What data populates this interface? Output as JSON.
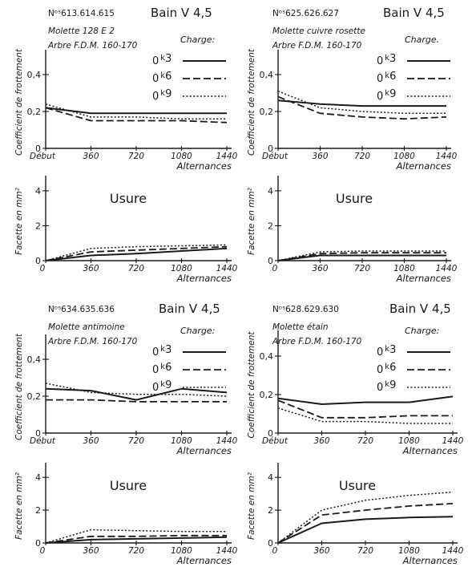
{
  "ink": "#1a1a1a",
  "paper": "#ffffff",
  "legend_header": "Charge:",
  "legend_header_dot": "Charge.",
  "panels": [
    {
      "id": "613",
      "header": {
        "number": "Nᵒˢ613.614.615",
        "bain": "Bain V 4,5",
        "line1": "Molette  128  E 2",
        "line2": "Arbre  F.D.M. 160-170"
      },
      "friction": {
        "ylabel": "Coefficient de frottement",
        "xlabel": "Alternances",
        "x_ticks": [
          "Début",
          "360",
          "720",
          "1080",
          "1440"
        ],
        "y_ticks": [
          "0",
          "0,2",
          "0,4"
        ],
        "ylim": [
          0,
          0.5
        ],
        "x": [
          0,
          360,
          720,
          1080,
          1440
        ],
        "series": [
          {
            "name": "0k3",
            "style": "solid",
            "values": [
              0.22,
              0.19,
              0.19,
              0.19,
              0.19
            ]
          },
          {
            "name": "0k6",
            "style": "dashed",
            "values": [
              0.22,
              0.15,
              0.15,
              0.15,
              0.14
            ]
          },
          {
            "name": "0k9",
            "style": "dotted",
            "values": [
              0.24,
              0.17,
              0.17,
              0.16,
              0.16
            ]
          }
        ]
      },
      "wear": {
        "title": "Usure",
        "ylabel": "Facette en mm²",
        "xlabel": "Alternances",
        "x_ticks": [
          "0",
          "360",
          "720",
          "1080",
          "1440"
        ],
        "y_ticks": [
          "0",
          "2",
          "4"
        ],
        "ylim": [
          0,
          4.5
        ],
        "x": [
          0,
          360,
          720,
          1080,
          1440
        ],
        "series": [
          {
            "name": "0k3",
            "style": "solid",
            "values": [
              0,
              0.3,
              0.4,
              0.55,
              0.7
            ]
          },
          {
            "name": "0k6",
            "style": "dashed",
            "values": [
              0,
              0.5,
              0.6,
              0.7,
              0.8
            ]
          },
          {
            "name": "0k9",
            "style": "dotted",
            "values": [
              0,
              0.7,
              0.8,
              0.85,
              0.9
            ]
          }
        ]
      }
    },
    {
      "id": "625",
      "header": {
        "number": "Nᵒˢ625.626.627",
        "bain": "Bain V 4,5",
        "line1": "Molette cuivre rosette",
        "line2": "Arbre  F.D.M. 160-170"
      },
      "friction": {
        "ylabel": "Coefficient de frottement",
        "xlabel": "Alternances",
        "x_ticks": [
          "Début",
          "360",
          "720",
          "1080",
          "1440"
        ],
        "y_ticks": [
          "0",
          "0,2",
          "0,4"
        ],
        "ylim": [
          0,
          0.5
        ],
        "x": [
          0,
          360,
          720,
          1080,
          1440
        ],
        "series": [
          {
            "name": "0k3",
            "style": "solid",
            "values": [
              0.26,
              0.24,
              0.23,
              0.23,
              0.23
            ]
          },
          {
            "name": "0k6",
            "style": "dashed",
            "values": [
              0.28,
              0.19,
              0.17,
              0.16,
              0.17
            ]
          },
          {
            "name": "0k9",
            "style": "dotted",
            "values": [
              0.31,
              0.22,
              0.2,
              0.19,
              0.19
            ]
          }
        ]
      },
      "wear": {
        "title": "Usure",
        "ylabel": "Facette en mm²",
        "xlabel": "Alternances",
        "x_ticks": [
          "0",
          "360",
          "720",
          "1080",
          "1440"
        ],
        "y_ticks": [
          "0",
          "2",
          "4"
        ],
        "ylim": [
          0,
          4.5
        ],
        "x": [
          0,
          360,
          720,
          1080,
          1440
        ],
        "series": [
          {
            "name": "0k3",
            "style": "solid",
            "values": [
              0,
              0.3,
              0.3,
              0.3,
              0.3
            ]
          },
          {
            "name": "0k6",
            "style": "dashed",
            "values": [
              0,
              0.4,
              0.45,
              0.45,
              0.45
            ]
          },
          {
            "name": "0k9",
            "style": "dotted",
            "values": [
              0,
              0.5,
              0.55,
              0.55,
              0.55
            ]
          }
        ]
      }
    },
    {
      "id": "634",
      "header": {
        "number": "Nᵒˢ634.635.636",
        "bain": "Bain V 4,5",
        "line1": "Molette antimoine",
        "line2": "Arbre  F.D.M. 160-170"
      },
      "friction": {
        "ylabel": "Coefficient de frottement",
        "xlabel": "Alternances",
        "x_ticks": [
          "Début",
          "360",
          "720",
          "1080",
          "1440"
        ],
        "y_ticks": [
          "0",
          "0,2",
          "0,4"
        ],
        "ylim": [
          0,
          0.5
        ],
        "x": [
          0,
          360,
          720,
          1080,
          1440
        ],
        "series": [
          {
            "name": "0k3",
            "style": "solid",
            "values": [
              0.24,
              0.23,
              0.18,
              0.24,
              0.22
            ]
          },
          {
            "name": "0k6",
            "style": "dashed",
            "values": [
              0.18,
              0.18,
              0.17,
              0.17,
              0.17
            ]
          },
          {
            "name": "0k9",
            "style": "dotted",
            "values": [
              0.27,
              0.22,
              0.21,
              0.21,
              0.2
            ]
          }
        ]
      },
      "wear": {
        "title": "Usure",
        "ylabel": "Facette en mm²",
        "xlabel": "Alternances",
        "x_ticks": [
          "0",
          "360",
          "720",
          "1080",
          "1440"
        ],
        "y_ticks": [
          "0",
          "2",
          "4"
        ],
        "ylim": [
          0,
          4.5
        ],
        "x": [
          0,
          360,
          720,
          1080,
          1440
        ],
        "series": [
          {
            "name": "0k3",
            "style": "solid",
            "values": [
              0,
              0.2,
              0.25,
              0.3,
              0.35
            ]
          },
          {
            "name": "0k6",
            "style": "dashed",
            "values": [
              0,
              0.4,
              0.4,
              0.45,
              0.45
            ]
          },
          {
            "name": "0k9",
            "style": "dotted",
            "values": [
              0,
              0.8,
              0.75,
              0.7,
              0.7
            ]
          }
        ]
      }
    },
    {
      "id": "628",
      "header": {
        "number": "Nᵒˢ628.629.630",
        "bain": "Bain V 4,5",
        "line1": "Molette  étain",
        "line2": "Arbre F.D.M. 160-170"
      },
      "friction": {
        "ylabel": "Coefficient de frottement",
        "xlabel": "Alternances",
        "x_ticks": [
          "Début",
          "360",
          "720",
          "1080",
          "1440"
        ],
        "y_ticks": [
          "0",
          "0,2",
          "0,4"
        ],
        "ylim": [
          0,
          0.5
        ],
        "x": [
          0,
          360,
          720,
          1080,
          1440
        ],
        "series": [
          {
            "name": "0k3",
            "style": "solid",
            "values": [
              0.18,
              0.15,
              0.16,
              0.16,
              0.19
            ]
          },
          {
            "name": "0k6",
            "style": "dashed",
            "values": [
              0.17,
              0.08,
              0.08,
              0.09,
              0.09
            ]
          },
          {
            "name": "0k9",
            "style": "dotted",
            "values": [
              0.13,
              0.06,
              0.06,
              0.05,
              0.05
            ]
          }
        ]
      },
      "wear": {
        "title": "Usure",
        "ylabel": "Facette en mm²",
        "xlabel": "Alternances",
        "x_ticks": [
          "0",
          "360",
          "720",
          "1080",
          "1440"
        ],
        "y_ticks": [
          "0",
          "2",
          "4"
        ],
        "ylim": [
          0,
          4.5
        ],
        "x": [
          0,
          360,
          720,
          1080,
          1440
        ],
        "series": [
          {
            "name": "0k3",
            "style": "solid",
            "values": [
              0,
              1.2,
              1.45,
              1.55,
              1.6
            ]
          },
          {
            "name": "0k6",
            "style": "dashed",
            "values": [
              0,
              1.7,
              2.0,
              2.25,
              2.4
            ]
          },
          {
            "name": "0k9",
            "style": "dotted",
            "values": [
              0,
              2.0,
              2.6,
              2.9,
              3.1
            ]
          }
        ]
      }
    }
  ],
  "chart_data": [
    {
      "type": "line",
      "panel": "613",
      "ylabel": "Coefficient de frottement",
      "xlabel": "Alternances",
      "x": [
        "Début",
        "360",
        "720",
        "1080",
        "1440"
      ],
      "ylim": [
        0,
        0.5
      ],
      "series": [
        {
          "name": "0k3",
          "values": [
            0.22,
            0.19,
            0.19,
            0.19,
            0.19
          ]
        },
        {
          "name": "0k6",
          "values": [
            0.22,
            0.15,
            0.15,
            0.15,
            0.14
          ]
        },
        {
          "name": "0k9",
          "values": [
            0.24,
            0.17,
            0.17,
            0.16,
            0.16
          ]
        }
      ]
    },
    {
      "type": "line",
      "panel": "613",
      "title": "Usure",
      "ylabel": "Facette en mm²",
      "xlabel": "Alternances",
      "x": [
        0,
        360,
        720,
        1080,
        1440
      ],
      "ylim": [
        0,
        4.5
      ],
      "series": [
        {
          "name": "0k3",
          "values": [
            0,
            0.3,
            0.4,
            0.55,
            0.7
          ]
        },
        {
          "name": "0k6",
          "values": [
            0,
            0.5,
            0.6,
            0.7,
            0.8
          ]
        },
        {
          "name": "0k9",
          "values": [
            0,
            0.7,
            0.8,
            0.85,
            0.9
          ]
        }
      ]
    },
    {
      "type": "line",
      "panel": "625",
      "ylabel": "Coefficient de frottement",
      "xlabel": "Alternances",
      "x": [
        "Début",
        "360",
        "720",
        "1080",
        "1440"
      ],
      "ylim": [
        0,
        0.5
      ],
      "series": [
        {
          "name": "0k3",
          "values": [
            0.26,
            0.24,
            0.23,
            0.23,
            0.23
          ]
        },
        {
          "name": "0k6",
          "values": [
            0.28,
            0.19,
            0.17,
            0.16,
            0.17
          ]
        },
        {
          "name": "0k9",
          "values": [
            0.31,
            0.22,
            0.2,
            0.19,
            0.19
          ]
        }
      ]
    },
    {
      "type": "line",
      "panel": "625",
      "title": "Usure",
      "ylabel": "Facette en mm²",
      "xlabel": "Alternances",
      "x": [
        0,
        360,
        720,
        1080,
        1440
      ],
      "ylim": [
        0,
        4.5
      ],
      "series": [
        {
          "name": "0k3",
          "values": [
            0,
            0.3,
            0.3,
            0.3,
            0.3
          ]
        },
        {
          "name": "0k6",
          "values": [
            0,
            0.4,
            0.45,
            0.45,
            0.45
          ]
        },
        {
          "name": "0k9",
          "values": [
            0,
            0.5,
            0.55,
            0.55,
            0.55
          ]
        }
      ]
    },
    {
      "type": "line",
      "panel": "634",
      "ylabel": "Coefficient de frottement",
      "xlabel": "Alternances",
      "x": [
        "Début",
        "360",
        "720",
        "1080",
        "1440"
      ],
      "ylim": [
        0,
        0.5
      ],
      "series": [
        {
          "name": "0k3",
          "values": [
            0.24,
            0.23,
            0.18,
            0.24,
            0.22
          ]
        },
        {
          "name": "0k6",
          "values": [
            0.18,
            0.18,
            0.17,
            0.17,
            0.17
          ]
        },
        {
          "name": "0k9",
          "values": [
            0.27,
            0.22,
            0.21,
            0.21,
            0.2
          ]
        }
      ]
    },
    {
      "type": "line",
      "panel": "634",
      "title": "Usure",
      "ylabel": "Facette en mm²",
      "xlabel": "Alternances",
      "x": [
        0,
        360,
        720,
        1080,
        1440
      ],
      "ylim": [
        0,
        4.5
      ],
      "series": [
        {
          "name": "0k3",
          "values": [
            0,
            0.2,
            0.25,
            0.3,
            0.35
          ]
        },
        {
          "name": "0k6",
          "values": [
            0,
            0.4,
            0.4,
            0.45,
            0.45
          ]
        },
        {
          "name": "0k9",
          "values": [
            0,
            0.8,
            0.75,
            0.7,
            0.7
          ]
        }
      ]
    },
    {
      "type": "line",
      "panel": "628",
      "ylabel": "Coefficient de frottement",
      "xlabel": "Alternances",
      "x": [
        "Début",
        "360",
        "720",
        "1080",
        "1440"
      ],
      "ylim": [
        0,
        0.5
      ],
      "series": [
        {
          "name": "0k3",
          "values": [
            0.18,
            0.15,
            0.16,
            0.16,
            0.19
          ]
        },
        {
          "name": "0k6",
          "values": [
            0.17,
            0.08,
            0.08,
            0.09,
            0.09
          ]
        },
        {
          "name": "0k9",
          "values": [
            0.13,
            0.06,
            0.06,
            0.05,
            0.05
          ]
        }
      ]
    },
    {
      "type": "line",
      "panel": "628",
      "title": "Usure",
      "ylabel": "Facette en mm²",
      "xlabel": "Alternances",
      "x": [
        0,
        360,
        720,
        1080,
        1440
      ],
      "ylim": [
        0,
        4.5
      ],
      "series": [
        {
          "name": "0k3",
          "values": [
            0,
            1.2,
            1.45,
            1.55,
            1.6
          ]
        },
        {
          "name": "0k6",
          "values": [
            0,
            1.7,
            2.0,
            2.25,
            2.4
          ]
        },
        {
          "name": "0k9",
          "values": [
            0,
            2.0,
            2.6,
            2.9,
            3.1
          ]
        }
      ]
    }
  ]
}
